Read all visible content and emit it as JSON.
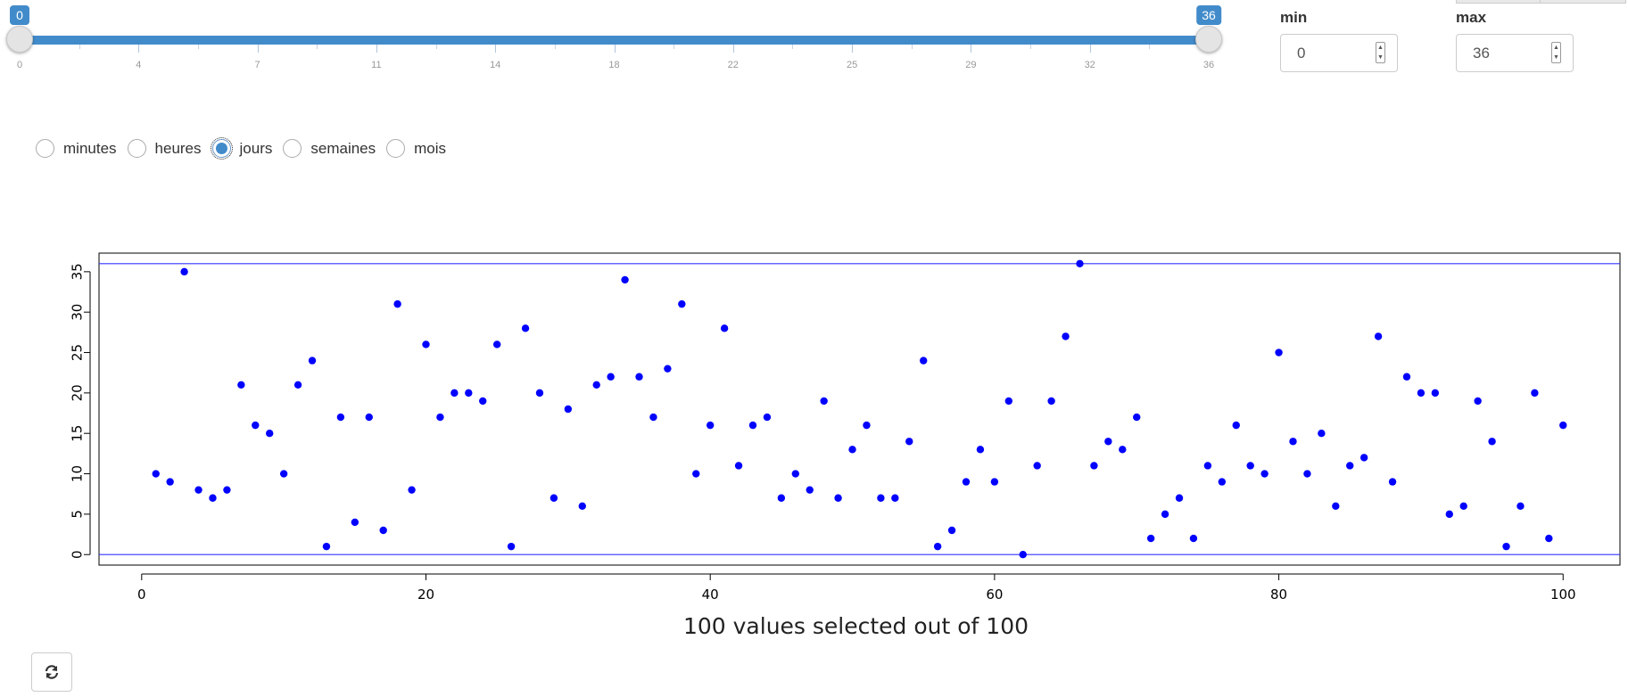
{
  "slider": {
    "min": 0,
    "max": 36,
    "from": 0,
    "to": 36,
    "ticks": [
      "0",
      "4",
      "7",
      "11",
      "14",
      "18",
      "22",
      "25",
      "29",
      "32",
      "36"
    ]
  },
  "inputs": {
    "min_label": "min",
    "min_value": "0",
    "max_label": "max",
    "max_value": "36"
  },
  "radio_options": [
    {
      "label": "minutes",
      "checked": false
    },
    {
      "label": "heures",
      "checked": false
    },
    {
      "label": "jours",
      "checked": true
    },
    {
      "label": "semaines",
      "checked": false
    },
    {
      "label": "mois",
      "checked": false
    }
  ],
  "colors": {
    "accent": "#428bca",
    "points": "#0000ff",
    "hline": "#3333ff"
  },
  "refresh_icon": "refresh-icon",
  "chart_data": {
    "type": "scatter",
    "xlabel": "100 values selected out of 100",
    "ylabel": "",
    "xlim": [
      -3,
      104
    ],
    "ylim": [
      -1.3,
      37.3
    ],
    "xticks": [
      0,
      20,
      40,
      60,
      80,
      100
    ],
    "yticks": [
      0,
      5,
      10,
      15,
      20,
      25,
      30,
      35
    ],
    "hlines": [
      0,
      36
    ],
    "x": [
      1,
      2,
      3,
      4,
      5,
      6,
      7,
      8,
      9,
      10,
      11,
      12,
      13,
      14,
      15,
      16,
      17,
      18,
      19,
      20,
      21,
      22,
      23,
      24,
      25,
      26,
      27,
      28,
      29,
      30,
      31,
      32,
      33,
      34,
      35,
      36,
      37,
      38,
      39,
      40,
      41,
      42,
      43,
      44,
      45,
      46,
      47,
      48,
      49,
      50,
      51,
      52,
      53,
      54,
      55,
      56,
      57,
      58,
      59,
      60,
      61,
      62,
      63,
      64,
      65,
      66,
      67,
      68,
      69,
      70,
      71,
      72,
      73,
      74,
      75,
      76,
      77,
      78,
      79,
      80,
      81,
      82,
      83,
      84,
      85,
      86,
      87,
      88,
      89,
      90,
      91,
      92,
      93,
      94,
      95,
      96,
      97,
      98,
      99,
      100
    ],
    "y": [
      10,
      9,
      35,
      8,
      7,
      8,
      21,
      16,
      15,
      10,
      21,
      24,
      1,
      17,
      4,
      17,
      3,
      31,
      8,
      26,
      17,
      20,
      20,
      19,
      26,
      1,
      28,
      20,
      7,
      18,
      6,
      21,
      22,
      34,
      22,
      17,
      23,
      31,
      10,
      16,
      28,
      11,
      16,
      17,
      7,
      10,
      8,
      19,
      7,
      13,
      16,
      7,
      7,
      14,
      24,
      1,
      3,
      9,
      13,
      9,
      19,
      0,
      11,
      19,
      27,
      36,
      11,
      14,
      13,
      17,
      2,
      5,
      7,
      2,
      11,
      9,
      16,
      11,
      10,
      25,
      14,
      10,
      15,
      6,
      11,
      12,
      27,
      9,
      22,
      20,
      20,
      5,
      6,
      19,
      14,
      1,
      6,
      20,
      2,
      16
    ],
    "grid": false
  }
}
